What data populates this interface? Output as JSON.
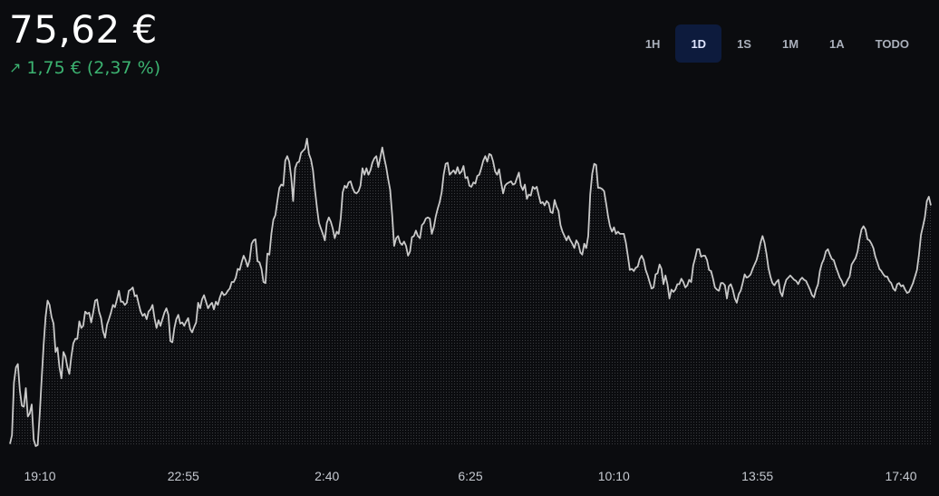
{
  "header": {
    "price": "75,62 €",
    "change_arrow": "↗",
    "change_text": "1,75 € (2,37 %)",
    "change_color": "#3cb371"
  },
  "ranges": [
    {
      "label": "1H",
      "active": false
    },
    {
      "label": "1D",
      "active": true
    },
    {
      "label": "1S",
      "active": false
    },
    {
      "label": "1M",
      "active": false
    },
    {
      "label": "1A",
      "active": false
    },
    {
      "label": "TODO",
      "active": false
    }
  ],
  "colors": {
    "background": "#0b0c0f",
    "line": "#c9c9c9",
    "active_range_bg": "#0d1b3d",
    "positive": "#3cb371"
  },
  "chart_data": {
    "type": "area",
    "x_tick_labels": [
      "19:10",
      "22:55",
      "2:40",
      "6:25",
      "10:10",
      "13:55",
      "17:40"
    ],
    "y_axis_visible": false,
    "grid": false,
    "y_range": [
      55,
      85
    ],
    "series": [
      {
        "values": [
          55.2,
          56.0,
          60.8,
          62.2,
          62.5,
          60.1,
          58.7,
          58.6,
          60.3,
          57.7,
          58.0,
          58.8,
          55.6,
          55.0,
          55.1,
          57.9,
          61.2,
          64.2,
          66.8,
          68.3,
          67.9,
          66.8,
          66.2,
          63.6,
          64.0,
          62.2,
          61.2,
          63.6,
          63.2,
          62.2,
          61.6,
          63.2,
          64.4,
          64.8,
          64.8,
          66.4,
          65.8,
          66.0,
          67.3,
          67.1,
          67.2,
          66.3,
          67.2,
          68.3,
          68.4,
          67.3,
          66.7,
          65.5,
          64.9,
          66.1,
          66.6,
          67.2,
          67.9,
          67.7,
          68.4,
          69.2,
          68.2,
          68.2,
          67.9,
          68.1,
          69.2,
          69.3,
          69.5,
          68.7,
          68.8,
          68.0,
          67.3,
          66.9,
          67.1,
          66.6,
          67.3,
          67.5,
          67.9,
          66.7,
          65.8,
          66.5,
          66.0,
          66.6,
          67.2,
          67.6,
          67.0,
          64.6,
          64.5,
          65.8,
          66.6,
          67.0,
          66.2,
          66.3,
          66.0,
          66.4,
          66.7,
          65.7,
          65.4,
          65.9,
          66.3,
          68.1,
          67.6,
          68.4,
          68.8,
          68.2,
          67.6,
          67.9,
          68.1,
          67.5,
          68.2,
          67.9,
          68.6,
          69.1,
          68.8,
          68.9,
          69.2,
          69.4,
          70.0,
          70.0,
          70.4,
          71.2,
          71.1,
          71.8,
          72.4,
          72.0,
          71.4,
          72.0,
          73.5,
          73.8,
          73.9,
          71.9,
          71.8,
          71.2,
          70.0,
          69.9,
          72.6,
          72.5,
          74.4,
          75.7,
          76.1,
          77.4,
          78.6,
          78.9,
          78.8,
          81.1,
          81.5,
          81.0,
          79.6,
          77.4,
          80.4,
          80.9,
          81.0,
          81.8,
          82.0,
          82.2,
          83.1,
          81.7,
          81.2,
          80.2,
          78.4,
          76.8,
          75.4,
          74.9,
          74.4,
          73.8,
          75.4,
          75.9,
          75.5,
          74.9,
          74.0,
          74.6,
          74.4,
          75.8,
          78.2,
          78.8,
          78.6,
          79.1,
          79.2,
          78.6,
          78.2,
          78.1,
          78.3,
          78.8,
          80.4,
          79.8,
          80.4,
          79.8,
          80.2,
          80.9,
          81.3,
          81.5,
          80.5,
          81.4,
          82.3,
          81.3,
          80.5,
          79.4,
          78.4,
          76.1,
          73.3,
          74.0,
          74.2,
          73.6,
          73.4,
          73.7,
          73.3,
          72.4,
          72.8,
          74.1,
          74.2,
          74.7,
          74.2,
          74.0,
          75.2,
          75.4,
          75.8,
          75.9,
          75.8,
          74.4,
          75.0,
          76.0,
          76.7,
          77.3,
          78.2,
          79.8,
          80.8,
          80.9,
          79.8,
          80.0,
          80.2,
          79.9,
          80.5,
          79.9,
          80.1,
          80.6,
          79.5,
          79.6,
          78.8,
          78.7,
          79.1,
          79.0,
          79.7,
          79.8,
          80.4,
          81.1,
          81.5,
          81.0,
          81.7,
          81.6,
          81.0,
          80.1,
          79.8,
          80.3,
          79.1,
          78.1,
          78.8,
          79.0,
          79.1,
          79.2,
          78.9,
          79.0,
          79.5,
          80.0,
          78.8,
          78.4,
          78.9,
          77.6,
          78.0,
          77.9,
          78.7,
          78.5,
          78.7,
          77.9,
          77.2,
          77.3,
          77.0,
          77.4,
          77.2,
          76.4,
          76.3,
          77.5,
          76.9,
          76.5,
          75.2,
          74.6,
          74.2,
          73.8,
          74.2,
          73.8,
          73.5,
          73.1,
          73.8,
          73.5,
          72.7,
          72.5,
          73.5,
          73.1,
          74.2,
          78.0,
          79.9,
          80.8,
          80.7,
          78.6,
          78.6,
          78.5,
          78.3,
          77.2,
          76.0,
          75.1,
          74.6,
          75.0,
          74.4,
          74.6,
          74.4,
          74.4,
          74.4,
          73.6,
          72.4,
          71.1,
          71.2,
          71.0,
          71.3,
          71.4,
          72.1,
          72.4,
          72.0,
          71.1,
          70.6,
          70.0,
          69.4,
          69.5,
          70.7,
          70.8,
          71.6,
          71.2,
          69.8,
          70.6,
          69.8,
          68.5,
          69.3,
          69.1,
          69.3,
          69.8,
          69.8,
          70.3,
          70.0,
          69.5,
          69.7,
          70.2,
          70.0,
          71.5,
          72.2,
          73.0,
          73.0,
          72.3,
          72.4,
          72.4,
          72.0,
          71.1,
          71.0,
          70.3,
          69.5,
          69.3,
          69.2,
          69.9,
          69.9,
          69.7,
          68.5,
          69.6,
          69.8,
          69.3,
          68.5,
          68.1,
          68.9,
          69.2,
          69.9,
          70.7,
          70.4,
          70.5,
          70.7,
          71.2,
          71.6,
          72.0,
          72.7,
          73.6,
          74.2,
          73.6,
          72.6,
          71.3,
          70.5,
          69.9,
          69.7,
          70.0,
          70.2,
          69.1,
          68.7,
          69.6,
          70.2,
          70.4,
          70.6,
          70.4,
          70.2,
          70.1,
          69.8,
          70.2,
          70.4,
          70.2,
          70.1,
          69.7,
          69.3,
          68.8,
          68.6,
          69.3,
          69.8,
          71.0,
          71.7,
          72.1,
          72.8,
          73.0,
          72.5,
          72.1,
          72.0,
          71.4,
          70.9,
          70.4,
          70.1,
          69.6,
          69.8,
          70.2,
          70.5,
          71.6,
          71.9,
          72.2,
          72.8,
          73.9,
          74.8,
          75.1,
          74.8,
          73.9,
          73.8,
          73.5,
          73.1,
          72.3,
          71.8,
          71.2,
          71.0,
          70.7,
          70.5,
          70.5,
          70.1,
          69.9,
          69.4,
          69.2,
          69.8,
          69.9,
          69.6,
          69.7,
          69.3,
          69.0,
          69.1,
          69.5,
          69.9,
          70.5,
          71.1,
          72.5,
          74.3,
          75.1,
          75.9,
          77.4,
          77.8,
          77.0
        ]
      }
    ]
  }
}
